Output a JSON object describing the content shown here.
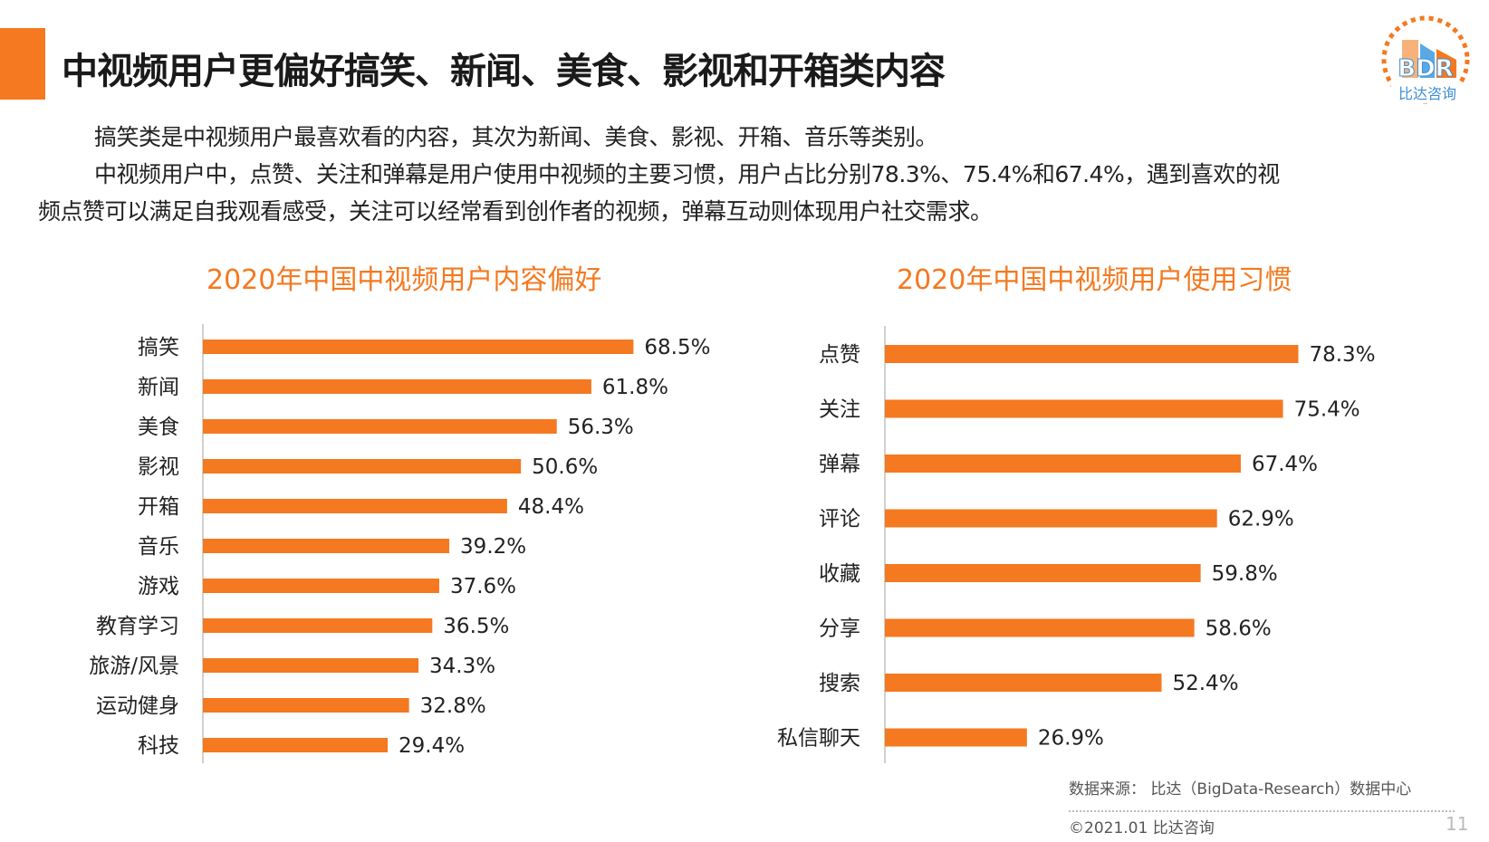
{
  "title": "中视频用户更偏好搞笑、新闻、美食、影视和开箱类内容",
  "paragraphs": {
    "p1": "搞笑类是中视频用户最喜欢看的内容，其次为新闻、美食、影视、开箱、音乐等类别。",
    "p2a": "中视频用户中，点赞、关注和弹幕是用户使用中视频的主要习惯，用户占比分别78.3%、75.4%和67.4%，遇到喜欢的视",
    "p2b": "频点赞可以满足自我观看感受，关注可以经常看到创作者的视频，弹幕互动则体现用户社交需求。"
  },
  "logo": {
    "text": "BDR",
    "subtext": "比达咨询"
  },
  "colors": {
    "accent": "#f47920",
    "text": "#222222"
  },
  "chart_data": [
    {
      "type": "bar",
      "orientation": "horizontal",
      "title": "2020年中国中视频用户内容偏好",
      "categories": [
        "搞笑",
        "新闻",
        "美食",
        "影视",
        "开箱",
        "音乐",
        "游戏",
        "教育学习",
        "旅游/风景",
        "运动健身",
        "科技"
      ],
      "values": [
        68.5,
        61.8,
        56.3,
        50.6,
        48.4,
        39.2,
        37.6,
        36.5,
        34.3,
        32.8,
        29.4
      ],
      "labels": [
        "68.5%",
        "61.8%",
        "56.3%",
        "50.6%",
        "48.4%",
        "39.2%",
        "37.6%",
        "36.5%",
        "34.3%",
        "32.8%",
        "29.4%"
      ],
      "unit": "%",
      "xlim": [
        0,
        100
      ]
    },
    {
      "type": "bar",
      "orientation": "horizontal",
      "title": "2020年中国中视频用户使用习惯",
      "categories": [
        "点赞",
        "关注",
        "弹幕",
        "评论",
        "收藏",
        "分享",
        "搜索",
        "私信聊天"
      ],
      "values": [
        78.3,
        75.4,
        67.4,
        62.9,
        59.8,
        58.6,
        52.4,
        26.9
      ],
      "labels": [
        "78.3%",
        "75.4%",
        "67.4%",
        "62.9%",
        "59.8%",
        "58.6%",
        "52.4%",
        "26.9%"
      ],
      "unit": "%",
      "xlim": [
        0,
        100
      ]
    }
  ],
  "footer": {
    "source": "数据来源： 比达（BigData-Research）数据中心",
    "copyright": "©2021.01  比达咨询",
    "page_number": "11"
  }
}
